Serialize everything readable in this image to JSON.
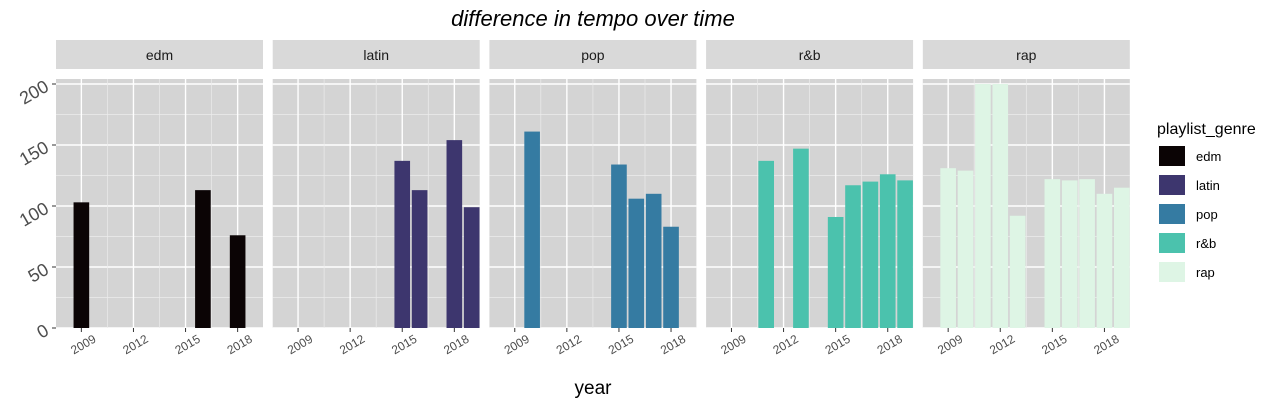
{
  "chart_data": {
    "type": "bar",
    "title": "difference in tempo over time",
    "xlabel": "year",
    "ylabel": "",
    "ylim": [
      0,
      200
    ],
    "yticks": [
      0,
      50,
      100,
      150,
      200
    ],
    "xlim": [
      2008,
      2019
    ],
    "xticks": [
      2009,
      2012,
      2015,
      2018
    ],
    "grid": true,
    "legend": {
      "title": "playlist_genre",
      "placement": "right",
      "entries": [
        "edm",
        "latin",
        "pop",
        "r&b",
        "rap"
      ]
    },
    "colors": {
      "edm": "#0b0405",
      "latin": "#3d366e",
      "pop": "#357ba2",
      "r&b": "#4bc2ad",
      "rap": "#def5e5"
    },
    "panel_background": "#d4d4d4",
    "strip_background": "#d9d9d9",
    "facets": [
      {
        "name": "edm",
        "bars": [
          {
            "x": 2009,
            "y": 103
          },
          {
            "x": 2016,
            "y": 113
          },
          {
            "x": 2018,
            "y": 76
          }
        ]
      },
      {
        "name": "latin",
        "bars": [
          {
            "x": 2015,
            "y": 137
          },
          {
            "x": 2016,
            "y": 113
          },
          {
            "x": 2018,
            "y": 154
          },
          {
            "x": 2019,
            "y": 99
          }
        ]
      },
      {
        "name": "pop",
        "bars": [
          {
            "x": 2010,
            "y": 161
          },
          {
            "x": 2015,
            "y": 134
          },
          {
            "x": 2016,
            "y": 106
          },
          {
            "x": 2017,
            "y": 110
          },
          {
            "x": 2018,
            "y": 83
          }
        ]
      },
      {
        "name": "r&b",
        "bars": [
          {
            "x": 2011,
            "y": 137
          },
          {
            "x": 2013,
            "y": 147
          },
          {
            "x": 2015,
            "y": 91
          },
          {
            "x": 2016,
            "y": 117
          },
          {
            "x": 2017,
            "y": 120
          },
          {
            "x": 2018,
            "y": 126
          },
          {
            "x": 2019,
            "y": 121
          }
        ]
      },
      {
        "name": "rap",
        "bars": [
          {
            "x": 2009,
            "y": 131
          },
          {
            "x": 2010,
            "y": 129
          },
          {
            "x": 2011,
            "y": 200
          },
          {
            "x": 2012,
            "y": 200
          },
          {
            "x": 2013,
            "y": 92
          },
          {
            "x": 2015,
            "y": 122
          },
          {
            "x": 2016,
            "y": 121
          },
          {
            "x": 2017,
            "y": 122
          },
          {
            "x": 2018,
            "y": 110
          },
          {
            "x": 2019,
            "y": 115
          }
        ]
      }
    ]
  }
}
